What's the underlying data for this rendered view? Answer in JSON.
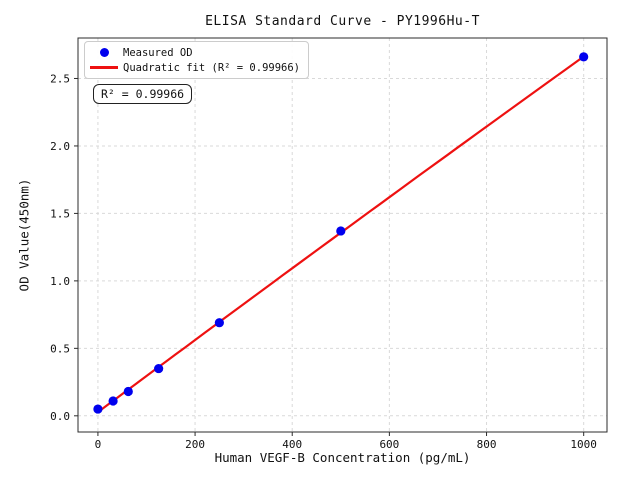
{
  "window": {
    "title": "ELISA Standard Curve - PY1996Hu-T"
  },
  "chart_data": {
    "type": "scatter",
    "title": "ELISA Standard Curve - PY1996Hu-T",
    "xlabel": "Human VEGF-B Concentration (pg/mL)",
    "ylabel": "OD Value(450nm)",
    "xlim": [
      -41,
      1048
    ],
    "ylim": [
      -0.12,
      2.8
    ],
    "xticks": [
      0,
      200,
      400,
      600,
      800,
      1000
    ],
    "xtick_labels": [
      "0",
      "200",
      "400",
      "600",
      "800",
      "1000"
    ],
    "yticks": [
      0.0,
      0.5,
      1.0,
      1.5,
      2.0,
      2.5
    ],
    "ytick_labels": [
      "0.0",
      "0.5",
      "1.0",
      "1.5",
      "2.0",
      "2.5"
    ],
    "grid": true,
    "grid_style": "dashed",
    "legend_position": "upper-left",
    "series": [
      {
        "name": "Measured OD",
        "type": "scatter",
        "color": "#0000ee",
        "x": [
          0,
          31.25,
          62.5,
          125,
          250,
          500,
          1000
        ],
        "y": [
          0.05,
          0.11,
          0.18,
          0.35,
          0.69,
          1.37,
          2.66
        ]
      },
      {
        "name": "Quadratic fit (R² = 0.99966)",
        "type": "line",
        "fit": "quadratic",
        "color": "#ee1111",
        "x_range": [
          0,
          1000
        ]
      }
    ],
    "annotation": "R² = 0.99966",
    "r_squared": 0.99966,
    "colors": {
      "point": "#0000ee",
      "line": "#ee1111",
      "grid": "#d9d9d9",
      "spine": "#2b2b2b",
      "text": "#111111",
      "background": "#ffffff"
    }
  }
}
